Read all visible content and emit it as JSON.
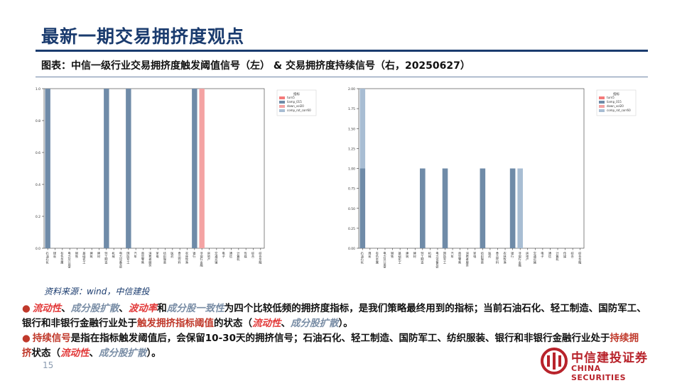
{
  "title": "最新一期交易拥挤度观点",
  "caption": "图表：中信一级行业交易拥挤度触发阈值信号（左） & 交易拥挤度持续信号（右，20250627）",
  "source": "资料来源：wind，中信建投",
  "page_number": "15",
  "logo": {
    "cn": "中信建投证券",
    "en": "CHINA SECURITIES"
  },
  "colors": {
    "turn5": "#f47a7a",
    "liamp_015": "#6f8ba8",
    "down_vol20": "#f4a3a3",
    "comp_rot_corr60": "#a8bdd3"
  },
  "bullet1": {
    "t1": "流动性",
    "t2": "、",
    "t3": "成分股扩散",
    "t4": "、",
    "t5": "波动率",
    "t6": "和",
    "t7": "成分股一致性",
    "t8": "为四个比较低频的拥挤度指标，是我们策略最终用到的指标；当前石油石化、轻工制造、国防军工、银行和非银行金融行业处于",
    "t9": "触发拥挤指标阈值",
    "t10": "的状态（",
    "t11": "流动性",
    "t12": "、",
    "t13": "成分股扩散",
    "t14": "）。"
  },
  "bullet2": {
    "t1": "持续信号",
    "t2": "是指在指标触发阈值后，会保留10-30天的拥挤信号；石油石化、轻工制造、国防军工、纺织服装、银行和非银行金融行业处于",
    "t3": "持续拥挤",
    "t4": "状态（",
    "t5": "流动性",
    "t6": "、",
    "t7": "成分股扩散",
    "t8": "）。"
  },
  "chart_data": [
    {
      "type": "bar",
      "stacked": true,
      "categories": [
        "石油石化",
        "煤炭",
        "有色金属",
        "电力及公用事业",
        "钢铁",
        "基础化工",
        "建筑",
        "建材",
        "轻工制造",
        "机械",
        "电力设备及新能源",
        "国防军工",
        "汽车",
        "商贸零售",
        "消费者服务",
        "家电",
        "纺织服装",
        "医药",
        "食品饮料",
        "农林牧渔",
        "银行",
        "非银行金融",
        "房地产",
        "交通运输",
        "电子",
        "通信",
        "计算机",
        "传媒",
        "综合",
        "综合金融"
      ],
      "series": [
        {
          "name": "turn5",
          "values": [
            0,
            0,
            0,
            0,
            0,
            0,
            0,
            0,
            0,
            0,
            0,
            0,
            0,
            0,
            0,
            0,
            0,
            0,
            0,
            0,
            0,
            0,
            0,
            0,
            0,
            0,
            0,
            0,
            0,
            0
          ]
        },
        {
          "name": "liamp_015",
          "values": [
            1,
            0,
            0,
            0,
            0,
            0,
            0,
            0,
            1,
            0,
            0,
            1,
            0,
            0,
            0,
            0,
            0,
            0,
            0,
            0,
            1,
            0,
            0,
            0,
            0,
            0,
            0,
            0,
            0,
            0
          ]
        },
        {
          "name": "down_vol20",
          "values": [
            0,
            0,
            0,
            0,
            0,
            0,
            0,
            0,
            0,
            0,
            0,
            0,
            0,
            0,
            0,
            0,
            0,
            0,
            0,
            0,
            0,
            1,
            0,
            0,
            0,
            0,
            0,
            0,
            0,
            0
          ]
        },
        {
          "name": "comp_rot_corr60",
          "values": [
            0,
            0,
            0,
            0,
            0,
            0,
            0,
            0,
            0,
            0,
            0,
            0,
            0,
            0,
            0,
            0,
            0,
            0,
            0,
            0,
            0,
            0,
            0,
            0,
            0,
            0,
            0,
            0,
            0,
            0
          ]
        }
      ],
      "ylim": [
        0,
        1.0
      ],
      "yticks": [
        "0.0",
        "0.2",
        "0.4",
        "0.6",
        "0.8",
        "1.0"
      ],
      "legend_title": "指标",
      "legend": "top-right"
    },
    {
      "type": "bar",
      "stacked": true,
      "categories": [
        "石油石化",
        "煤炭",
        "有色金属",
        "电力及公用事业",
        "钢铁",
        "基础化工",
        "建筑",
        "建材",
        "轻工制造",
        "机械",
        "电力设备及新能源",
        "国防军工",
        "汽车",
        "商贸零售",
        "消费者服务",
        "家电",
        "纺织服装",
        "医药",
        "食品饮料",
        "农林牧渔",
        "银行",
        "非银行金融",
        "房地产",
        "交通运输",
        "电子",
        "通信",
        "计算机",
        "传媒",
        "综合",
        "综合金融"
      ],
      "series": [
        {
          "name": "turn5",
          "values": [
            0,
            0,
            0,
            0,
            0,
            0,
            0,
            0,
            0,
            0,
            0,
            0,
            0,
            0,
            0,
            0,
            0,
            0,
            0,
            0,
            0,
            0,
            0,
            0,
            0,
            0,
            0,
            0,
            0,
            0
          ]
        },
        {
          "name": "liamp_015",
          "values": [
            1,
            0,
            0,
            0,
            0,
            0,
            0,
            0,
            1,
            0,
            0,
            1,
            0,
            0,
            0,
            0,
            1,
            0,
            0,
            0,
            1,
            0,
            0,
            0,
            0,
            0,
            0,
            0,
            0,
            0
          ]
        },
        {
          "name": "down_vol20",
          "values": [
            0,
            0,
            0,
            0,
            0,
            0,
            0,
            0,
            0,
            0,
            0,
            0,
            0,
            0,
            0,
            0,
            0,
            0,
            0,
            0,
            0,
            0,
            0,
            0,
            0,
            0,
            0,
            0,
            0,
            0
          ]
        },
        {
          "name": "comp_rot_corr60",
          "values": [
            1,
            0,
            0,
            0,
            0,
            0,
            0,
            0,
            0,
            0,
            0,
            0,
            0,
            0,
            0,
            0,
            0,
            0,
            0,
            0,
            0,
            1,
            0,
            0,
            0,
            0,
            0,
            0,
            0,
            0
          ]
        }
      ],
      "ylim": [
        0,
        2.0
      ],
      "yticks": [
        "0.00",
        "0.25",
        "0.50",
        "0.75",
        "1.00",
        "1.25",
        "1.50",
        "1.75",
        "2.00"
      ],
      "legend_title": "指标",
      "legend": "top-right"
    }
  ]
}
